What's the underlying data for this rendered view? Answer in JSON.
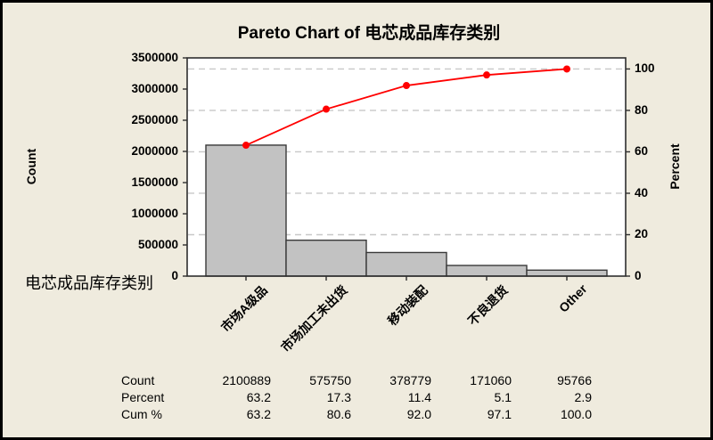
{
  "title": "Pareto Chart of 电芯成品库存类别",
  "colors": {
    "background": "#EFEBDE",
    "plot_background": "#FFFFFF",
    "bar_fill": "#C2C2C2",
    "bar_border": "#3A3A3A",
    "axis": "#2E2E2E",
    "gridline": "#C8C8C8",
    "cumulative_line": "#FF0000",
    "text": "#000000"
  },
  "chart_data": {
    "type": "bar",
    "subtype": "pareto-with-cumulative-line",
    "title": "Pareto Chart of 电芯成品库存类别",
    "categories": [
      "市场A级品",
      "市场加工未出货",
      "移动装配",
      "不良退货",
      "Other"
    ],
    "series": [
      {
        "name": "Count",
        "type": "bar",
        "values": [
          2100889,
          575750,
          378779,
          171060,
          95766
        ]
      },
      {
        "name": "Cum %",
        "type": "line",
        "values": [
          63.2,
          80.6,
          92.0,
          97.1,
          100.0
        ]
      }
    ],
    "ylabel_left": "Count",
    "ylabel_right": "Percent",
    "xlabel": "电芯成品库存类别",
    "ylim_left": [
      0,
      3500000
    ],
    "ylim_right": [
      0,
      100
    ],
    "yticks_left": [
      "0",
      "500000",
      "1000000",
      "1500000",
      "2000000",
      "2500000",
      "3000000",
      "3500000"
    ],
    "yticks_right": [
      "0",
      "20",
      "40",
      "60",
      "80",
      "100"
    ],
    "grid": "horizontal dashed lines at right-axis (percent) ticks",
    "legend": "none"
  },
  "table": {
    "rows": [
      {
        "label": "Count",
        "values": [
          "2100889",
          "575750",
          "378779",
          "171060",
          "95766"
        ]
      },
      {
        "label": "Percent",
        "values": [
          "63.2",
          "17.3",
          "11.4",
          "5.1",
          "2.9"
        ]
      },
      {
        "label": "Cum %",
        "values": [
          "63.2",
          "80.6",
          "92.0",
          "97.1",
          "100.0"
        ]
      }
    ]
  }
}
